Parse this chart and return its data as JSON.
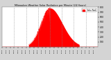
{
  "title": "Milwaukee Weather Solar Radiation per Minute (24 Hours)",
  "bg_color": "#d4d4d4",
  "plot_bg_color": "#ffffff",
  "line_color": "#ff0000",
  "fill_color": "#ff0000",
  "grid_color": "#888888",
  "legend_label": "Solar Rad.",
  "legend_color": "#ff0000",
  "ylim": [
    0,
    800
  ],
  "yticks": [
    100,
    200,
    300,
    400,
    500,
    600,
    700,
    800
  ],
  "num_points": 1440,
  "peak_minute": 720,
  "peak_value": 780,
  "sunrise_minute": 400,
  "sunset_minute": 1160,
  "figsize": [
    1.6,
    0.87
  ],
  "dpi": 100
}
